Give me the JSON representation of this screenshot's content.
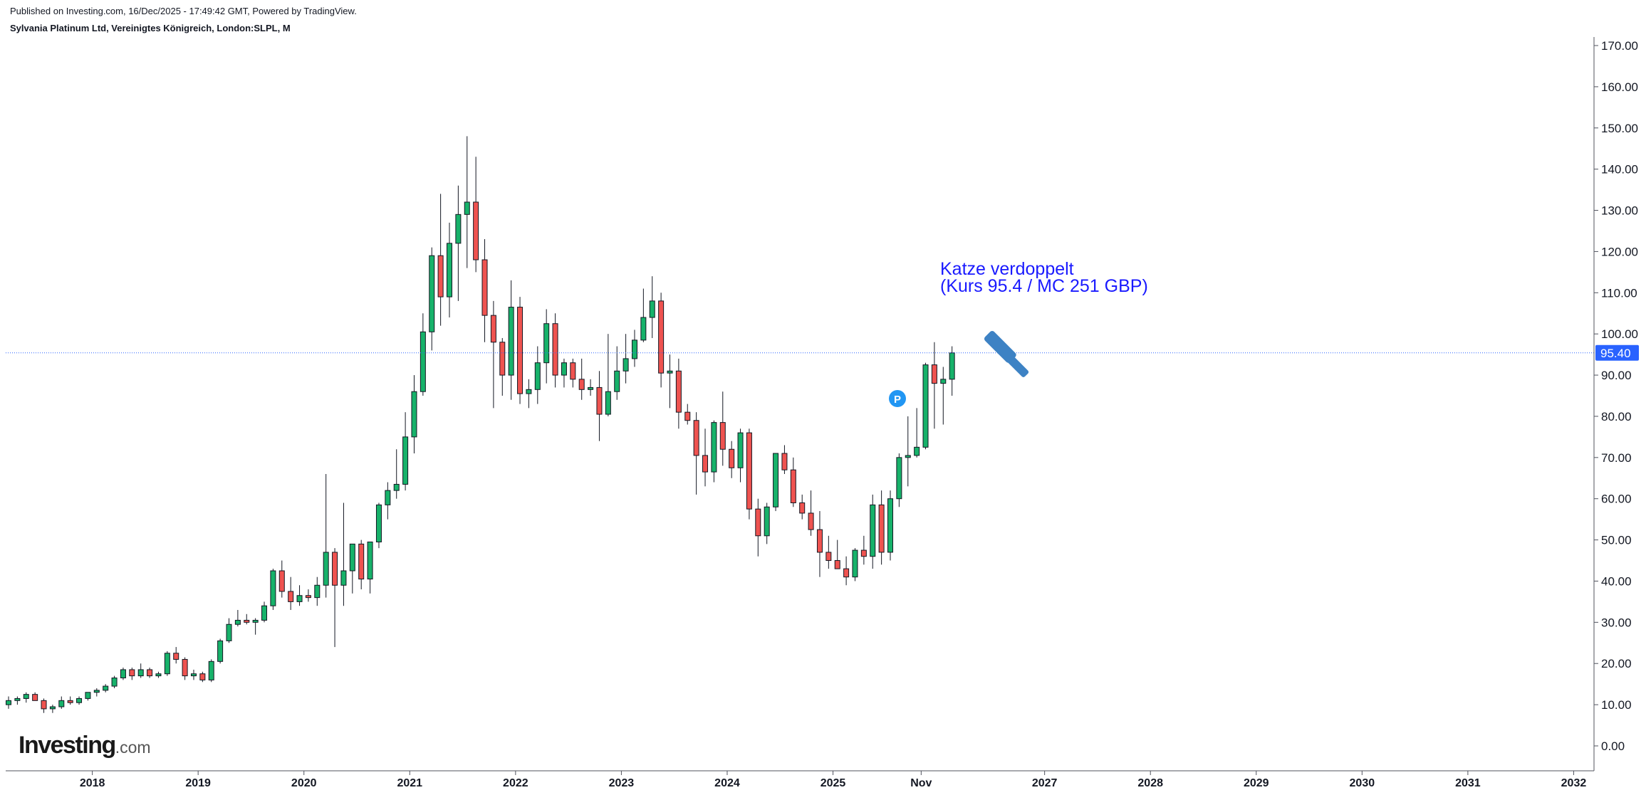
{
  "header": {
    "published": "Published on Investing.com, 16/Dec/2025 - 17:49:42 GMT, Powered by TradingView.",
    "symbol": "Sylvania Platinum Ltd, Vereinigtes Königreich, London:SLPL, M"
  },
  "branding": {
    "logo_main": "Investing",
    "logo_suffix": ".com"
  },
  "annotation": {
    "line1": "Katze verdoppelt",
    "line2": "(Kurs 95.4 / MC 251 GBP)",
    "marker": "P",
    "drawing_icon": "gavel-icon"
  },
  "colors": {
    "up": "#17b26a",
    "down": "#ef5350",
    "price_line": "#2962ff",
    "price_label_bg": "#2962ff",
    "annotation_text": "#1a1aff",
    "marker": "#2196f3",
    "gavel": "#3d82c4"
  },
  "chart_data": {
    "type": "candlestick",
    "interval": "M",
    "last_price": 95.4,
    "last_price_label": "95.40",
    "ylim": [
      -4,
      170
    ],
    "y_ticks": [
      "0.00",
      "10.00",
      "20.00",
      "30.00",
      "40.00",
      "50.00",
      "60.00",
      "70.00",
      "80.00",
      "90.00",
      "100.00",
      "110.00",
      "120.00",
      "130.00",
      "140.00",
      "150.00",
      "160.00",
      "170.00"
    ],
    "x_ticks": [
      "2018",
      "2019",
      "2020",
      "2021",
      "2022",
      "2023",
      "2024",
      "2025",
      "Nov",
      "2027",
      "2028",
      "2029",
      "2030",
      "2031",
      "2032"
    ],
    "start_month": "2017-03",
    "candles": [
      [
        10,
        12,
        9,
        11
      ],
      [
        11,
        12,
        10,
        11.5
      ],
      [
        11.5,
        13,
        10.5,
        12.5
      ],
      [
        12.5,
        13,
        11,
        11
      ],
      [
        11,
        11.5,
        8,
        9
      ],
      [
        9,
        10,
        8,
        9.5
      ],
      [
        9.5,
        12,
        9,
        11
      ],
      [
        11,
        12,
        10,
        10.5
      ],
      [
        10.5,
        12,
        10,
        11.5
      ],
      [
        11.5,
        13,
        11,
        13
      ],
      [
        13,
        14,
        12,
        13.5
      ],
      [
        13.5,
        15,
        13,
        14.5
      ],
      [
        14.5,
        17,
        14,
        16.5
      ],
      [
        16.5,
        19,
        16,
        18.5
      ],
      [
        18.5,
        19,
        16,
        17
      ],
      [
        17,
        20,
        16.5,
        18.5
      ],
      [
        18.5,
        19,
        16.5,
        17
      ],
      [
        17,
        18,
        16.5,
        17.5
      ],
      [
        17.5,
        23,
        17,
        22.5
      ],
      [
        22.5,
        24,
        20,
        21
      ],
      [
        21,
        21.5,
        16,
        17
      ],
      [
        17,
        18.5,
        16,
        17.5
      ],
      [
        17.5,
        18,
        15.5,
        16
      ],
      [
        16,
        21,
        15.5,
        20.5
      ],
      [
        20.5,
        26,
        20,
        25.5
      ],
      [
        25.5,
        31,
        25,
        29.5
      ],
      [
        29.5,
        33,
        29,
        30.5
      ],
      [
        30.5,
        32,
        29.5,
        30
      ],
      [
        30,
        31,
        27,
        30.5
      ],
      [
        30.5,
        35,
        30,
        34
      ],
      [
        34,
        43,
        33,
        42.5
      ],
      [
        42.5,
        45,
        36,
        37.5
      ],
      [
        37.5,
        41,
        33,
        35
      ],
      [
        35,
        39,
        34,
        36.5
      ],
      [
        36.5,
        38,
        35,
        36
      ],
      [
        36,
        41,
        34,
        39
      ],
      [
        39,
        66,
        36,
        47
      ],
      [
        47,
        48,
        24,
        39
      ],
      [
        39,
        59,
        34,
        42.5
      ],
      [
        42.5,
        49,
        37,
        49
      ],
      [
        49,
        50,
        38,
        40.5
      ],
      [
        40.5,
        49,
        37,
        49.5
      ],
      [
        49.5,
        59,
        48,
        58.5
      ],
      [
        58.5,
        64,
        55,
        62
      ],
      [
        62,
        72,
        60,
        63.5
      ],
      [
        63.5,
        81,
        62,
        75
      ],
      [
        75,
        90,
        71,
        86
      ],
      [
        86,
        105,
        85,
        100.5
      ],
      [
        100.5,
        121,
        96,
        119
      ],
      [
        119,
        134,
        102,
        109
      ],
      [
        109,
        127,
        104,
        122
      ],
      [
        122,
        136,
        108,
        129
      ],
      [
        129,
        148,
        116,
        132
      ],
      [
        132,
        143,
        115,
        118
      ],
      [
        118,
        123,
        98,
        104.5
      ],
      [
        104.5,
        108,
        82,
        98
      ],
      [
        98,
        99,
        85,
        90
      ],
      [
        90,
        113,
        84,
        106.5
      ],
      [
        106.5,
        109,
        83,
        85.5
      ],
      [
        85.5,
        89,
        82,
        86.5
      ],
      [
        86.5,
        97,
        83,
        93
      ],
      [
        93,
        106,
        88,
        102.5
      ],
      [
        102.5,
        105,
        87,
        90
      ],
      [
        90,
        94,
        87,
        93
      ],
      [
        93,
        94,
        87,
        89
      ],
      [
        89,
        94,
        84,
        86.5
      ],
      [
        86.5,
        89,
        85,
        87
      ],
      [
        87,
        91,
        74,
        80.5
      ],
      [
        80.5,
        100,
        80,
        86
      ],
      [
        86,
        97,
        84,
        91
      ],
      [
        91,
        100,
        88,
        94
      ],
      [
        94,
        101,
        92,
        98.5
      ],
      [
        98.5,
        111,
        98,
        104
      ],
      [
        104,
        114,
        99,
        108
      ],
      [
        108,
        110,
        87,
        90.5
      ],
      [
        90.5,
        95,
        82,
        91
      ],
      [
        91,
        94,
        77,
        81
      ],
      [
        81,
        83,
        78,
        79
      ],
      [
        79,
        81,
        61,
        70.5
      ],
      [
        70.5,
        77,
        63,
        66.5
      ],
      [
        66.5,
        79,
        64,
        78.5
      ],
      [
        78.5,
        86,
        68,
        72
      ],
      [
        72,
        74,
        65,
        67.5
      ],
      [
        67.5,
        77,
        64,
        76
      ],
      [
        76,
        77,
        55,
        57.5
      ],
      [
        57.5,
        60,
        46,
        51
      ],
      [
        51,
        59,
        49,
        58
      ],
      [
        58,
        71,
        57,
        71
      ],
      [
        71,
        73,
        66,
        67
      ],
      [
        67,
        70,
        58,
        59
      ],
      [
        59,
        61,
        55,
        56.5
      ],
      [
        56.5,
        62,
        51,
        52.5
      ],
      [
        52.5,
        57,
        41,
        47
      ],
      [
        47,
        51,
        43,
        45
      ],
      [
        45,
        50,
        44,
        43
      ],
      [
        43,
        46,
        39,
        41
      ],
      [
        41,
        48,
        40,
        47.5
      ],
      [
        47.5,
        51,
        44,
        46
      ],
      [
        46,
        61,
        43,
        58.5
      ],
      [
        58.5,
        62,
        44,
        47
      ],
      [
        47,
        62,
        45,
        60
      ],
      [
        60,
        71,
        58,
        70
      ],
      [
        70,
        80,
        63,
        70.5
      ],
      [
        70.5,
        82,
        70,
        72.5
      ],
      [
        72.5,
        93,
        72,
        92.5
      ],
      [
        92.5,
        98,
        77,
        88
      ],
      [
        88,
        92,
        78,
        89
      ],
      [
        89,
        97,
        85,
        95.4
      ]
    ]
  }
}
